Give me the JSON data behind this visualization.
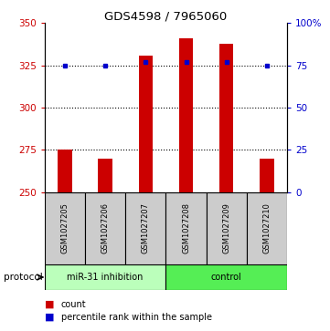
{
  "title": "GDS4598 / 7965060",
  "samples": [
    "GSM1027205",
    "GSM1027206",
    "GSM1027207",
    "GSM1027208",
    "GSM1027209",
    "GSM1027210"
  ],
  "red_bar_values": [
    275,
    270,
    331,
    341,
    338,
    270
  ],
  "blue_dot_values": [
    325,
    325,
    327,
    327,
    327,
    325
  ],
  "ylim_left": [
    250,
    350
  ],
  "ylim_right": [
    0,
    100
  ],
  "yticks_left": [
    250,
    275,
    300,
    325,
    350
  ],
  "yticks_right": [
    0,
    25,
    50,
    75,
    100
  ],
  "ytick_labels_right": [
    "0",
    "25",
    "50",
    "75",
    "100%"
  ],
  "left_color": "#cc0000",
  "right_color": "#0000cc",
  "bar_color": "#cc0000",
  "dot_color": "#0000cc",
  "group1_label": "miR-31 inhibition",
  "group2_label": "control",
  "group1_color": "#bbffbb",
  "group2_color": "#55ee55",
  "protocol_label": "protocol",
  "legend_count": "count",
  "legend_pct": "percentile rank within the sample",
  "label_area_color": "#cccccc",
  "base_value": 250,
  "bar_width": 0.35
}
